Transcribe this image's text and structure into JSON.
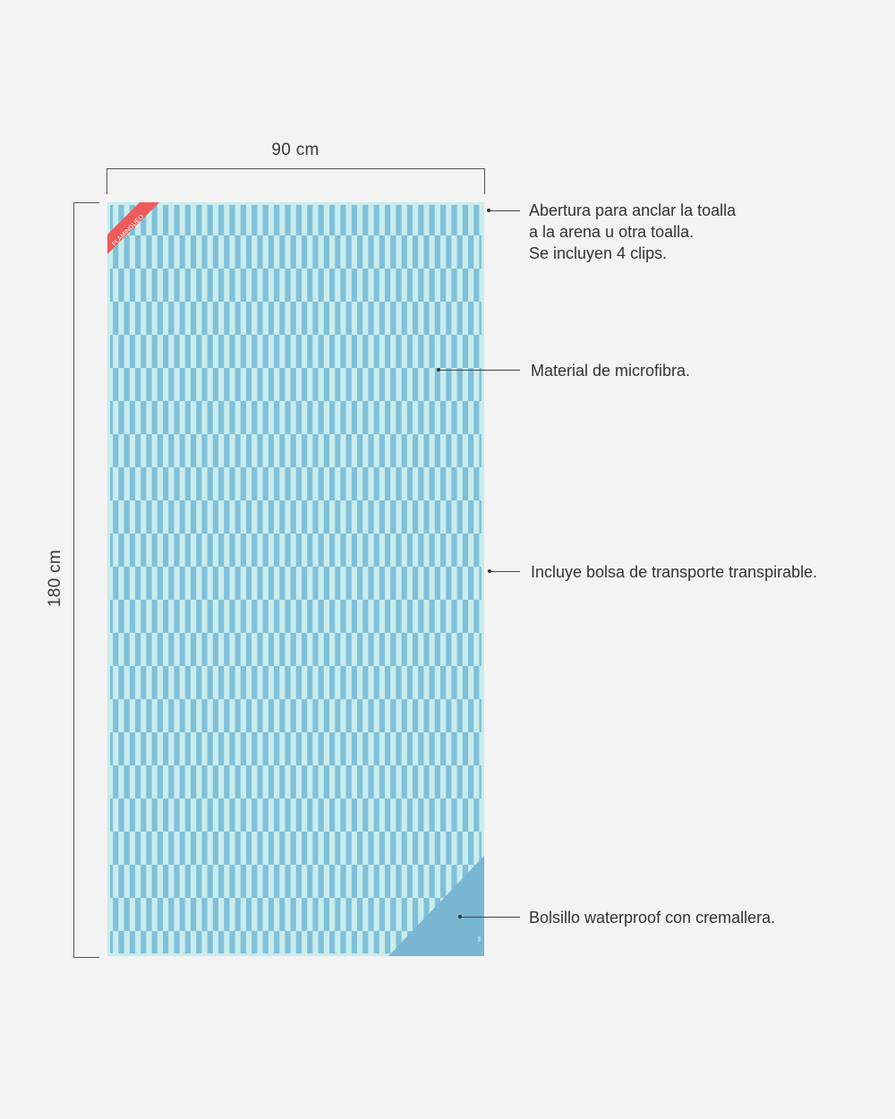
{
  "dimensions": {
    "width_label": "90 cm",
    "height_label": "180 cm"
  },
  "towel": {
    "brand_tag": "FLAMINGUEO",
    "pattern_colors": {
      "light": "#c9ecec",
      "dark": "#7fc0db",
      "tag": "#ef5a5a",
      "pocket": "#78b6d2"
    }
  },
  "annotations": [
    {
      "lines": [
        "Abertura para anclar la toalla",
        "a la arena u otra toalla.",
        "Se incluyen 4 clips."
      ]
    },
    {
      "lines": [
        "Material de microfibra."
      ]
    },
    {
      "lines": [
        "Incluye bolsa de transporte transpirable."
      ]
    },
    {
      "lines": [
        "Bolsillo waterproof con cremallera."
      ]
    }
  ]
}
